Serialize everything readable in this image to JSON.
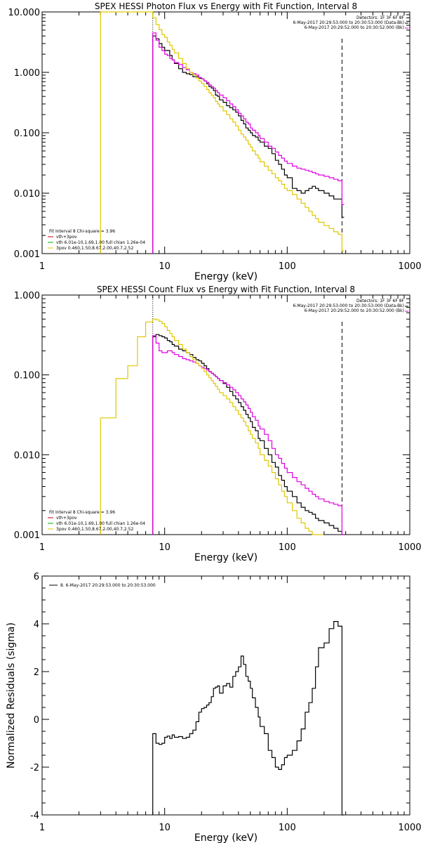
{
  "colors": {
    "black": "#000000",
    "magenta": "#e000e0",
    "yellow": "#e0c800",
    "red": "#d00000",
    "green": "#00b000",
    "background": "#ffffff"
  },
  "chart_data": [
    {
      "type": "line",
      "title": "SPEX HESSI Photon Flux vs Energy with Fit Function, Interval 8",
      "xlabel": "Energy (keV)",
      "ylabel": "",
      "xscale": "log",
      "yscale": "log",
      "xlim": [
        1,
        1000
      ],
      "ylim": [
        0.001,
        10
      ],
      "xtick_labels": [
        "1",
        "10",
        "100",
        "1000"
      ],
      "ytick_labels": [
        "0.001",
        "0.010",
        "0.100",
        "1.000",
        "10.000"
      ],
      "header_text": [
        "Detectors: 1F 3F 6F 8F",
        "6-May-2017 20:29:53.000 to 20:30:53.000 (Data-Bk)",
        "6-May-2017 20:29:52.000 to 20:30:52.000 (Bk)"
      ],
      "legend_text": [
        "Fit Interval 8   Chi-square = 3.96",
        "vth+3pov",
        "vth 6.01e-10,1.69,1.00  full chian 1.26e-04",
        "3pov 0.460,1.50,8.67,2.00,40.7,2.52"
      ],
      "vertical_lines": [
        8,
        280
      ],
      "series": [
        {
          "color": "black",
          "x": [
            8,
            8.5,
            9,
            9.5,
            10,
            10.5,
            11,
            11.5,
            12,
            13,
            14,
            15,
            16,
            17,
            18,
            19,
            20,
            21,
            22,
            23,
            24,
            25,
            26,
            27,
            28,
            30,
            32,
            34,
            36,
            38,
            40,
            42,
            44,
            46,
            48,
            50,
            52,
            55,
            58,
            60,
            65,
            70,
            75,
            80,
            85,
            90,
            95,
            100,
            110,
            120,
            130,
            140,
            150,
            160,
            170,
            180,
            200,
            220,
            240,
            260,
            280
          ],
          "values": [
            4.0,
            3.6,
            3.0,
            2.6,
            2.3,
            2.3,
            1.9,
            1.6,
            1.4,
            1.15,
            1.0,
            0.95,
            0.92,
            0.85,
            0.85,
            0.8,
            0.78,
            0.72,
            0.65,
            0.58,
            0.55,
            0.5,
            0.42,
            0.4,
            0.35,
            0.32,
            0.28,
            0.26,
            0.24,
            0.22,
            0.19,
            0.16,
            0.14,
            0.12,
            0.11,
            0.1,
            0.09,
            0.085,
            0.075,
            0.07,
            0.06,
            0.055,
            0.045,
            0.035,
            0.03,
            0.025,
            0.02,
            0.018,
            0.012,
            0.011,
            0.01,
            0.011,
            0.012,
            0.013,
            0.012,
            0.011,
            0.01,
            0.009,
            0.008,
            0.008,
            0.004
          ]
        },
        {
          "color": "magenta",
          "x": [
            8,
            8.5,
            9,
            9.5,
            10,
            10.5,
            11,
            11.5,
            12,
            13,
            14,
            15,
            16,
            17,
            18,
            19,
            20,
            21,
            22,
            23,
            24,
            25,
            26,
            27,
            28,
            30,
            32,
            34,
            36,
            38,
            40,
            42,
            44,
            46,
            48,
            50,
            52,
            55,
            58,
            60,
            65,
            70,
            75,
            80,
            85,
            90,
            95,
            100,
            110,
            120,
            130,
            140,
            150,
            160,
            170,
            180,
            200,
            220,
            240,
            260,
            280
          ],
          "values": [
            4.5,
            3.4,
            2.6,
            2.3,
            2.0,
            1.9,
            1.7,
            1.6,
            1.45,
            1.35,
            1.2,
            1.1,
            1.0,
            0.95,
            0.9,
            0.82,
            0.78,
            0.72,
            0.68,
            0.62,
            0.58,
            0.55,
            0.5,
            0.46,
            0.42,
            0.38,
            0.34,
            0.3,
            0.27,
            0.24,
            0.21,
            0.19,
            0.17,
            0.15,
            0.14,
            0.12,
            0.11,
            0.1,
            0.09,
            0.08,
            0.07,
            0.06,
            0.055,
            0.048,
            0.042,
            0.038,
            0.034,
            0.031,
            0.028,
            0.026,
            0.025,
            0.024,
            0.023,
            0.022,
            0.021,
            0.02,
            0.019,
            0.018,
            0.017,
            0.016,
            0.0065
          ]
        },
        {
          "color": "yellow",
          "x": [
            3,
            8,
            8.5,
            9,
            9.5,
            10,
            10.5,
            11,
            11.5,
            12,
            13,
            14,
            15,
            16,
            17,
            18,
            19,
            20,
            21,
            22,
            23,
            24,
            25,
            26,
            27,
            28,
            30,
            32,
            34,
            36,
            38,
            40,
            42,
            44,
            46,
            48,
            50,
            52,
            55,
            58,
            60,
            65,
            70,
            75,
            80,
            85,
            90,
            95,
            100,
            110,
            120,
            130,
            140,
            150,
            160,
            170,
            180,
            200,
            220,
            240,
            260,
            280
          ],
          "values": [
            10,
            8.0,
            6.2,
            5.1,
            4.2,
            3.8,
            3.2,
            2.8,
            2.4,
            2.1,
            1.7,
            1.4,
            1.15,
            1.0,
            0.9,
            0.8,
            0.72,
            0.65,
            0.58,
            0.52,
            0.46,
            0.42,
            0.38,
            0.33,
            0.3,
            0.27,
            0.23,
            0.2,
            0.17,
            0.15,
            0.13,
            0.11,
            0.095,
            0.085,
            0.075,
            0.065,
            0.058,
            0.05,
            0.043,
            0.038,
            0.033,
            0.028,
            0.024,
            0.021,
            0.018,
            0.016,
            0.014,
            0.012,
            0.011,
            0.0095,
            0.008,
            0.0068,
            0.0058,
            0.005,
            0.0043,
            0.0038,
            0.0033,
            0.0029,
            0.0026,
            0.0023,
            0.0021,
            0.0011
          ]
        }
      ]
    },
    {
      "type": "line",
      "title": "SPEX HESSI Count Flux vs Energy with Fit Function, Interval 8",
      "xlabel": "Energy (keV)",
      "ylabel": "",
      "xscale": "log",
      "yscale": "log",
      "xlim": [
        1,
        1000
      ],
      "ylim": [
        0.001,
        1
      ],
      "xtick_labels": [
        "1",
        "10",
        "100",
        "1000"
      ],
      "ytick_labels": [
        "0.001",
        "0.010",
        "0.100",
        "1.000"
      ],
      "header_text": [
        "Detectors: 1F 3F 6F 8F",
        "6-May-2017 20:29:53.000 to 20:30:53.000 (Data-Bk)",
        "6-May-2017 20:29:52.000 to 20:30:52.000 (Bk)"
      ],
      "legend_text": [
        "Fit Interval 8   Chi-square = 3.96",
        "vth+3pov",
        "vth 6.01e-10,1.69,1.00  full chian 1.26e-04",
        "3pov 0.460,1.50,8.67,2.00,40.7,2.52"
      ],
      "vertical_lines": [
        8,
        280
      ],
      "series": [
        {
          "color": "black",
          "x": [
            8,
            8.5,
            9,
            9.5,
            10,
            10.5,
            11,
            11.5,
            12,
            13,
            14,
            15,
            16,
            17,
            18,
            19,
            20,
            21,
            22,
            23,
            24,
            25,
            26,
            27,
            28,
            30,
            32,
            34,
            36,
            38,
            40,
            42,
            44,
            46,
            48,
            50,
            52,
            55,
            58,
            60,
            65,
            70,
            75,
            80,
            85,
            90,
            95,
            100,
            110,
            120,
            130,
            140,
            150,
            160,
            170,
            180,
            200,
            220,
            240,
            260,
            280
          ],
          "values": [
            0.3,
            0.32,
            0.31,
            0.3,
            0.29,
            0.27,
            0.26,
            0.24,
            0.23,
            0.21,
            0.2,
            0.19,
            0.18,
            0.165,
            0.155,
            0.15,
            0.14,
            0.13,
            0.12,
            0.11,
            0.105,
            0.1,
            0.095,
            0.09,
            0.085,
            0.078,
            0.07,
            0.062,
            0.055,
            0.05,
            0.045,
            0.04,
            0.036,
            0.032,
            0.029,
            0.026,
            0.022,
            0.02,
            0.016,
            0.015,
            0.012,
            0.01,
            0.008,
            0.007,
            0.0055,
            0.0048,
            0.004,
            0.0035,
            0.003,
            0.0025,
            0.0022,
            0.002,
            0.0019,
            0.0018,
            0.0016,
            0.0015,
            0.0014,
            0.0013,
            0.0012,
            0.0011,
            0.001
          ]
        },
        {
          "color": "magenta",
          "x": [
            8,
            8.5,
            9,
            9.5,
            10,
            10.5,
            11,
            11.5,
            12,
            13,
            14,
            15,
            16,
            17,
            18,
            19,
            20,
            21,
            22,
            23,
            24,
            25,
            26,
            27,
            28,
            30,
            32,
            34,
            36,
            38,
            40,
            42,
            44,
            46,
            48,
            50,
            52,
            55,
            58,
            60,
            65,
            70,
            75,
            80,
            85,
            90,
            95,
            100,
            110,
            120,
            130,
            140,
            150,
            160,
            170,
            180,
            200,
            220,
            240,
            260,
            280
          ],
          "values": [
            0.31,
            0.25,
            0.2,
            0.19,
            0.19,
            0.2,
            0.2,
            0.19,
            0.18,
            0.17,
            0.16,
            0.155,
            0.15,
            0.145,
            0.14,
            0.13,
            0.125,
            0.12,
            0.115,
            0.11,
            0.105,
            0.1,
            0.095,
            0.09,
            0.085,
            0.08,
            0.075,
            0.07,
            0.065,
            0.06,
            0.055,
            0.05,
            0.046,
            0.042,
            0.038,
            0.034,
            0.03,
            0.027,
            0.023,
            0.021,
            0.018,
            0.015,
            0.012,
            0.01,
            0.009,
            0.0078,
            0.0068,
            0.006,
            0.0052,
            0.0046,
            0.0042,
            0.0038,
            0.0035,
            0.0032,
            0.003,
            0.0028,
            0.0026,
            0.0025,
            0.0024,
            0.0023,
            0.001
          ]
        },
        {
          "color": "yellow",
          "x": [
            3,
            4,
            5,
            6,
            7,
            8,
            8.5,
            9,
            9.5,
            10,
            10.5,
            11,
            11.5,
            12,
            13,
            14,
            15,
            16,
            17,
            18,
            19,
            20,
            21,
            22,
            23,
            24,
            25,
            26,
            27,
            28,
            30,
            32,
            34,
            36,
            38,
            40,
            42,
            44,
            46,
            48,
            50,
            52,
            55,
            58,
            60,
            65,
            70,
            75,
            80,
            85,
            90,
            95,
            100,
            110,
            120,
            130,
            140,
            150,
            160,
            170,
            180,
            190
          ],
          "values": [
            0.029,
            0.09,
            0.13,
            0.3,
            0.46,
            0.5,
            0.49,
            0.47,
            0.44,
            0.4,
            0.36,
            0.33,
            0.3,
            0.27,
            0.24,
            0.21,
            0.19,
            0.17,
            0.155,
            0.14,
            0.13,
            0.12,
            0.11,
            0.1,
            0.092,
            0.085,
            0.078,
            0.072,
            0.066,
            0.06,
            0.055,
            0.05,
            0.045,
            0.04,
            0.036,
            0.032,
            0.029,
            0.026,
            0.023,
            0.02,
            0.018,
            0.016,
            0.014,
            0.012,
            0.01,
            0.0085,
            0.0072,
            0.006,
            0.005,
            0.0042,
            0.0035,
            0.003,
            0.0025,
            0.002,
            0.0016,
            0.0014,
            0.0012,
            0.0011,
            0.001,
            0.001,
            0.001,
            0.001
          ]
        }
      ]
    },
    {
      "type": "line",
      "title": "",
      "xlabel": "Energy (keV)",
      "ylabel": "Normalized Residuals (sigma)",
      "xscale": "log",
      "yscale": "linear",
      "xlim": [
        1,
        1000
      ],
      "ylim": [
        -4,
        6
      ],
      "xtick_labels": [
        "1",
        "10",
        "100",
        "1000"
      ],
      "ytick_labels": [
        "-4",
        "-2",
        "0",
        "2",
        "4",
        "6"
      ],
      "legend_text": [
        "8.  6-May-2017 20:29:53.000 to 20:30:53.000"
      ],
      "series": [
        {
          "color": "black",
          "x": [
            8,
            8.5,
            9,
            9.5,
            10,
            10.5,
            11,
            11.5,
            12,
            13,
            14,
            15,
            16,
            17,
            18,
            19,
            20,
            21,
            22,
            23,
            24,
            25,
            26,
            27,
            28,
            30,
            32,
            34,
            36,
            38,
            40,
            42,
            44,
            46,
            48,
            50,
            52,
            55,
            58,
            60,
            65,
            70,
            75,
            80,
            85,
            90,
            95,
            100,
            110,
            120,
            130,
            140,
            150,
            160,
            170,
            180,
            200,
            220,
            240,
            260,
            280
          ],
          "values": [
            -0.6,
            -1.0,
            -1.05,
            -1.0,
            -0.75,
            -0.7,
            -0.8,
            -0.65,
            -0.75,
            -0.72,
            -0.8,
            -0.75,
            -0.6,
            -0.45,
            -0.1,
            0.3,
            0.45,
            0.5,
            0.6,
            0.7,
            0.95,
            1.3,
            1.35,
            1.4,
            1.1,
            1.4,
            1.5,
            1.35,
            1.8,
            2.0,
            2.2,
            2.65,
            2.3,
            1.8,
            1.6,
            1.3,
            0.9,
            0.5,
            0.1,
            -0.3,
            -0.6,
            -1.3,
            -1.6,
            -2.0,
            -2.1,
            -1.9,
            -1.6,
            -1.5,
            -1.3,
            -0.9,
            -0.4,
            0.3,
            0.7,
            1.3,
            2.2,
            3.0,
            3.2,
            3.8,
            4.1,
            3.9,
            -4.0
          ]
        }
      ]
    }
  ]
}
